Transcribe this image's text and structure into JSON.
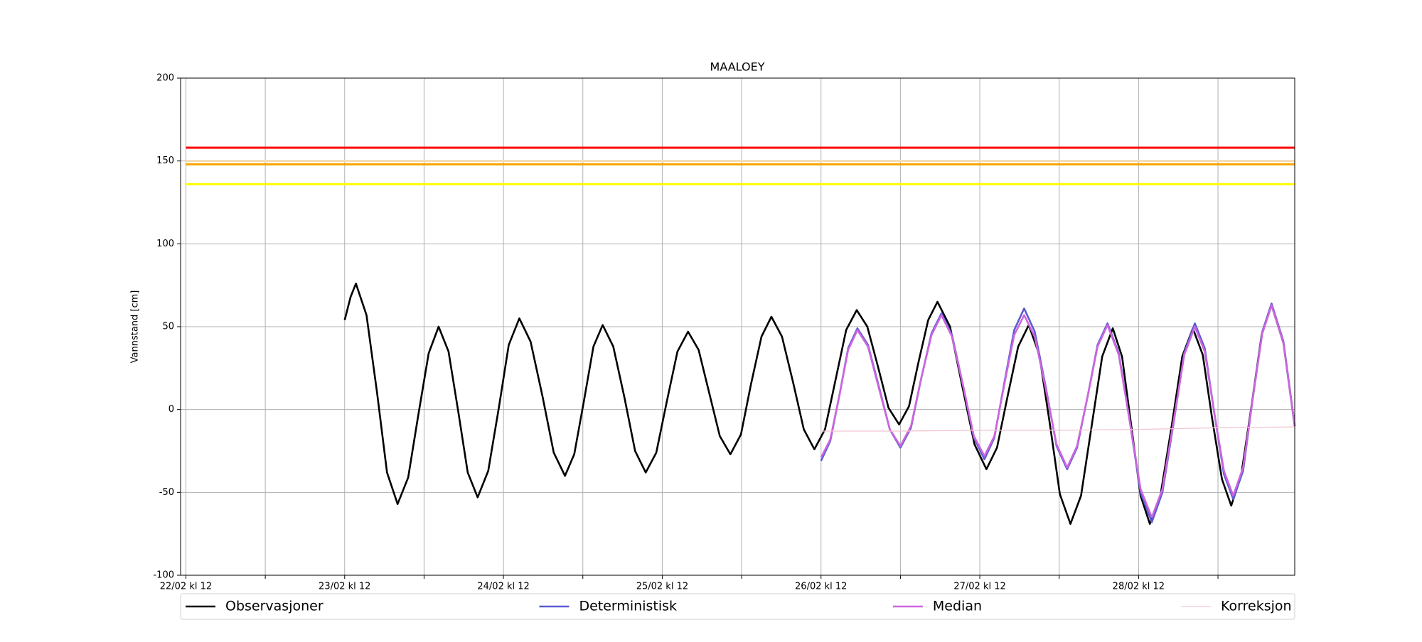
{
  "chart_data": {
    "type": "line",
    "title": "MAALOEY",
    "ylabel": "Vannstand [cm]",
    "xlim": [
      -0.8,
      167.6
    ],
    "ylim": [
      -100,
      200
    ],
    "yticks": [
      -100,
      -50,
      0,
      50,
      100,
      150,
      200
    ],
    "xticks": [
      {
        "value": 0,
        "label": "22/02 kl 12"
      },
      {
        "value": 24,
        "label": "23/02 kl 12"
      },
      {
        "value": 48,
        "label": "24/02 kl 12"
      },
      {
        "value": 72,
        "label": "25/02 kl 12"
      },
      {
        "value": 96,
        "label": "26/02 kl 12"
      },
      {
        "value": 120,
        "label": "27/02 kl 12"
      },
      {
        "value": 144,
        "label": "28/02 kl 12"
      }
    ],
    "xminor_ticks": [
      12,
      36,
      60,
      84,
      108,
      132,
      156
    ],
    "grid": true,
    "legend": "bottom",
    "thresholds": [
      {
        "value": 158,
        "color": "#ff0000"
      },
      {
        "value": 150,
        "color": "#f3dcb4"
      },
      {
        "value": 148,
        "color": "#ffa500"
      },
      {
        "value": 136,
        "color": "#ffff00"
      }
    ],
    "series": [
      {
        "name": "Observasjoner",
        "color": "#000000",
        "x": [
          24,
          24.9,
          25.7,
          27.3,
          28.9,
          30.4,
          32.0,
          33.6,
          35.1,
          36.7,
          38.2,
          39.7,
          41.2,
          42.6,
          44.1,
          45.7,
          47.3,
          48.8,
          50.4,
          52.1,
          53.9,
          55.6,
          57.3,
          58.7,
          60.2,
          61.6,
          63.0,
          64.6,
          66.3,
          67.9,
          69.5,
          71.1,
          72.7,
          74.3,
          75.9,
          77.5,
          79.1,
          80.7,
          82.3,
          83.9,
          85.4,
          87.0,
          88.5,
          90.1,
          91.8,
          93.4,
          95.0,
          96.6,
          98.2,
          99.8,
          101.4,
          103.0,
          104.6,
          106.2,
          107.8,
          109.3,
          110.7,
          112.2,
          113.6,
          115.5,
          117.3,
          119.2,
          121.0,
          122.6,
          124.2,
          125.8,
          127.4,
          129.0,
          130.6,
          132.1,
          133.7,
          135.3,
          136.9,
          138.5,
          140.1,
          141.5,
          142.9,
          144.3,
          145.7,
          147.3,
          149.0,
          150.6,
          152.2,
          153.7,
          155.1,
          156.6,
          158.0,
          159.5,
          161.1,
          162.6,
          164.1,
          165.9,
          167.6
        ],
        "values": [
          54,
          68,
          76,
          57,
          10,
          -38,
          -57,
          -41,
          -4,
          34,
          50,
          35,
          -2,
          -38,
          -53,
          -37,
          1,
          39,
          55,
          41,
          8,
          -26,
          -40,
          -27,
          6,
          38,
          51,
          38,
          7,
          -25,
          -38,
          -26,
          5,
          35,
          47,
          36,
          10,
          -16,
          -27,
          -15,
          15,
          44,
          56,
          44,
          16,
          -12,
          -24,
          -12,
          18,
          48,
          60,
          50,
          26,
          1,
          -9,
          2,
          28,
          54,
          65,
          50,
          15,
          -21,
          -36,
          -23,
          8,
          38,
          51,
          33,
          -9,
          -51,
          -69,
          -52,
          -10,
          32,
          49,
          32,
          -10,
          -52,
          -69,
          -52,
          -10,
          32,
          49,
          33,
          -5,
          -42,
          -58,
          -40,
          3,
          45,
          63,
          40,
          -10
        ]
      },
      {
        "name": "Deterministisk",
        "color": "#5b5bd6",
        "x": [
          96,
          97.4,
          98.8,
          100.1,
          101.5,
          103.1,
          104.8,
          106.4,
          108,
          109.6,
          111.1,
          112.7,
          114.2,
          115.8,
          117.5,
          119.1,
          120.7,
          122.2,
          123.7,
          125.2,
          126.7,
          128.3,
          130.0,
          131.6,
          133.2,
          134.7,
          136.3,
          137.8,
          139.3,
          141.0,
          142.7,
          144.3,
          146,
          147.6,
          149.3,
          150.9,
          152.5,
          154.0,
          155.4,
          156.9,
          158.3,
          159.8,
          161.2,
          162.7,
          164.1,
          165.9,
          167.6
        ],
        "values": [
          -31,
          -19,
          9,
          37,
          49,
          39,
          13,
          -12,
          -23,
          -11,
          18,
          46,
          58,
          45,
          14,
          -17,
          -30,
          -17,
          16,
          48,
          61,
          47,
          13,
          -22,
          -36,
          -23,
          8,
          39,
          52,
          34,
          -8,
          -50,
          -68,
          -50,
          -8,
          34,
          52,
          37,
          -1,
          -39,
          -54,
          -37,
          5,
          47,
          64,
          41,
          -10
        ]
      },
      {
        "name": "Median",
        "color": "#cc66dd",
        "x": [
          96,
          97.4,
          98.8,
          100.1,
          101.5,
          103.1,
          104.8,
          106.4,
          108,
          109.6,
          111.1,
          112.7,
          114.2,
          115.8,
          117.5,
          119.1,
          120.7,
          122.2,
          123.7,
          125.2,
          126.7,
          128.3,
          130.0,
          131.6,
          133.2,
          134.7,
          136.3,
          137.8,
          139.3,
          141.0,
          142.7,
          144.3,
          146,
          147.6,
          149.3,
          150.9,
          152.5,
          154.0,
          155.4,
          156.9,
          158.3,
          159.8,
          161.2,
          162.7,
          164.1,
          165.9,
          167.6
        ],
        "values": [
          -29,
          -18,
          9,
          36,
          48,
          38,
          12,
          -12,
          -22,
          -10,
          18,
          45,
          57,
          44,
          14,
          -16,
          -28,
          -16,
          15,
          45,
          57,
          44,
          12,
          -21,
          -35,
          -22,
          8,
          38,
          51,
          33,
          -8,
          -48,
          -65,
          -48,
          -7,
          33,
          50,
          35,
          -1,
          -37,
          -52,
          -35,
          5,
          46,
          63,
          40,
          -10
        ]
      },
      {
        "name": "Korreksjon",
        "color": "#f4c6d0",
        "x": [
          96,
          108,
          120,
          132,
          144,
          156,
          167.6
        ],
        "values": [
          -13,
          -13,
          -12.5,
          -12.5,
          -12,
          -11,
          -10.5
        ]
      }
    ]
  }
}
